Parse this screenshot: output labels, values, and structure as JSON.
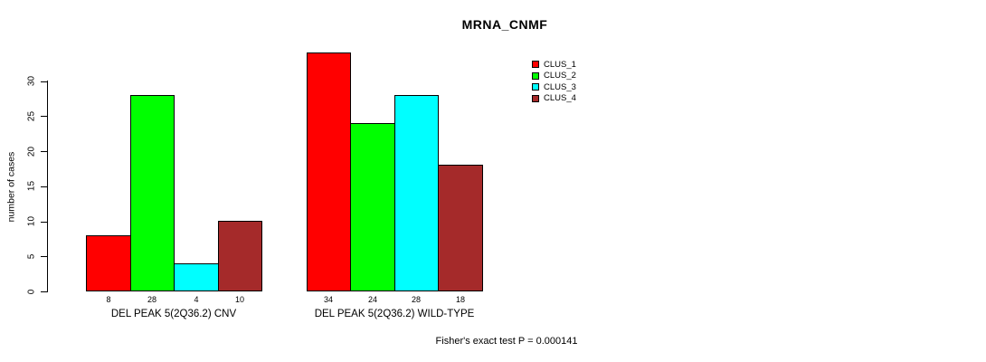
{
  "title": "MRNA_CNMF",
  "y_axis_label": "number of cases",
  "footer_annotation": "Fisher's exact test P = 0.000141",
  "legend": {
    "position": "top-right",
    "entries": [
      {
        "label": "CLUS_1",
        "color": "#FF0000"
      },
      {
        "label": "CLUS_2",
        "color": "#00FF00"
      },
      {
        "label": "CLUS_3",
        "color": "#00FFFF"
      },
      {
        "label": "CLUS_4",
        "color": "#A52A2A"
      }
    ]
  },
  "chart_data": {
    "type": "bar",
    "title": "MRNA_CNMF",
    "xlabel": "",
    "ylabel": "number of cases",
    "ylim": [
      0,
      34
    ],
    "yticks": [
      0,
      5,
      10,
      15,
      20,
      25,
      30
    ],
    "grid": false,
    "legend_position": "top-right",
    "series": [
      {
        "name": "CLUS_1",
        "color": "#FF0000",
        "values": [
          8,
          34
        ]
      },
      {
        "name": "CLUS_2",
        "color": "#00FF00",
        "values": [
          28,
          24
        ]
      },
      {
        "name": "CLUS_3",
        "color": "#00FFFF",
        "values": [
          4,
          28
        ]
      },
      {
        "name": "CLUS_4",
        "color": "#A52A2A",
        "values": [
          10,
          18
        ]
      }
    ],
    "categories": [
      "DEL PEAK 5(2Q36.2) CNV",
      "DEL PEAK 5(2Q36.2) WILD-TYPE"
    ],
    "bar_value_labels": [
      [
        8,
        28,
        4,
        10
      ],
      [
        34,
        24,
        28,
        18
      ]
    ],
    "annotation": "Fisher's exact test P = 0.000141"
  }
}
